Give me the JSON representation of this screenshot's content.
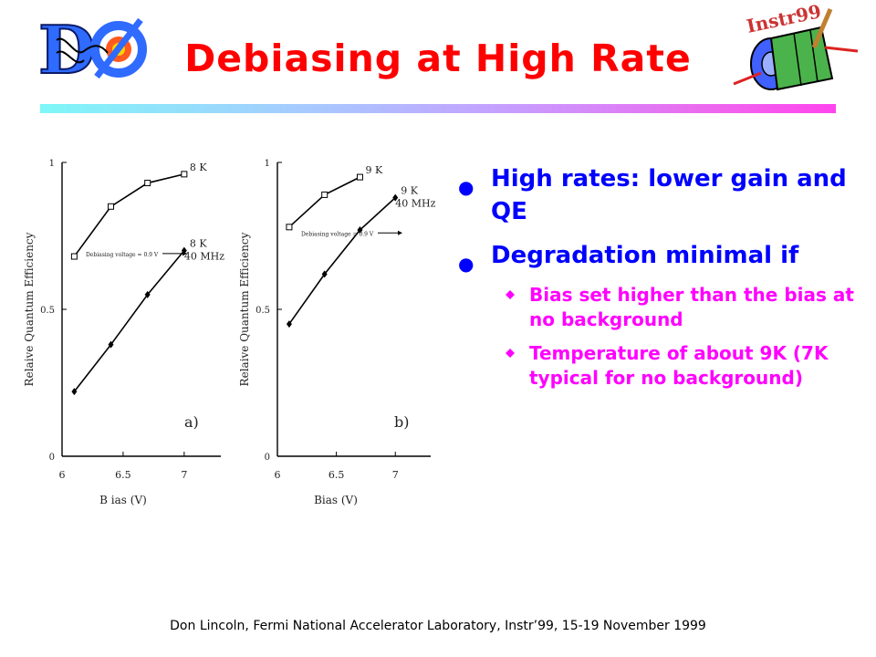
{
  "slide": {
    "title": "Debiasing at High Rate",
    "footer": "Don Lincoln, Fermi National Accelerator Laboratory, Instr’99, 15-19 November 1999",
    "logo_left_text": "DØ",
    "logo_right_text": "Instr99"
  },
  "bullets": [
    {
      "text": "High rates: lower gain and QE",
      "sub": []
    },
    {
      "text": "Degradation minimal if",
      "sub": [
        "Bias set higher than the bias at no background",
        "Temperature of about 9K (7K typical for no background)"
      ]
    }
  ],
  "chart_data": [
    {
      "type": "line",
      "panel_label": "a)",
      "xlabel": "B ias (V)",
      "ylabel": "Relaive Quantum Efficiency",
      "xlim": [
        6,
        7.3
      ],
      "ylim": [
        0,
        1
      ],
      "x_ticks": [
        "6",
        "6.5",
        "7"
      ],
      "y_ticks": [
        "0",
        "0.5",
        "1"
      ],
      "annotation": "Debiasing voltage = 0.9 V",
      "series": [
        {
          "name": "8 K",
          "marker": "square",
          "x": [
            6.1,
            6.4,
            6.7,
            7.0
          ],
          "y": [
            0.68,
            0.85,
            0.93,
            0.96
          ]
        },
        {
          "name": "8 K 40 MHz",
          "marker": "diamond",
          "x": [
            6.1,
            6.4,
            6.7,
            7.0
          ],
          "y": [
            0.22,
            0.38,
            0.55,
            0.7
          ]
        }
      ]
    },
    {
      "type": "line",
      "panel_label": "b)",
      "xlabel": "Bias (V)",
      "ylabel": "Relaive Quantum Efficiency",
      "xlim": [
        6,
        7.3
      ],
      "ylim": [
        0,
        1
      ],
      "x_ticks": [
        "6",
        "6.5",
        "7"
      ],
      "y_ticks": [
        "0",
        "0.5",
        "1"
      ],
      "annotation": "Debiasing voltage = 0.9 V",
      "series": [
        {
          "name": "9 K",
          "marker": "square",
          "x": [
            6.1,
            6.4,
            6.7
          ],
          "y": [
            0.78,
            0.89,
            0.95
          ]
        },
        {
          "name": "9 K 40 MHz",
          "marker": "diamond",
          "x": [
            6.1,
            6.4,
            6.7,
            7.0
          ],
          "y": [
            0.45,
            0.62,
            0.77,
            0.88
          ]
        }
      ]
    }
  ]
}
